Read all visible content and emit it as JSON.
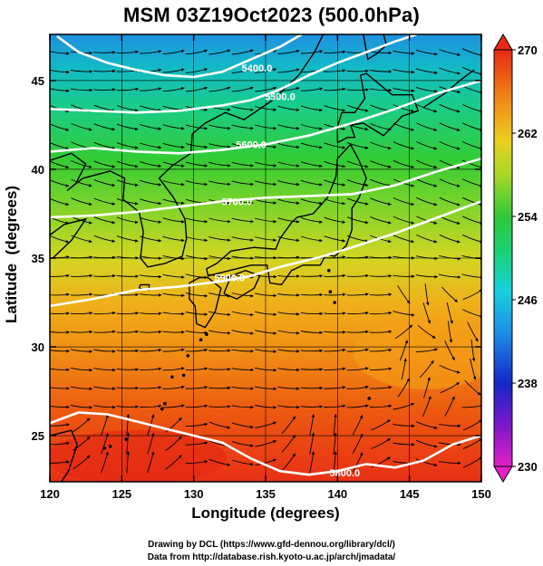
{
  "title": "MSM 03Z19Oct2023 (500.0hPa)",
  "axes": {
    "xlabel": "Longitude (degrees)",
    "ylabel": "Latitude  (degrees)",
    "xlim": [
      120,
      150
    ],
    "ylim": [
      22.4,
      47.6
    ],
    "xticks": [
      120,
      125,
      130,
      135,
      140,
      145,
      150
    ],
    "yticks": [
      25,
      30,
      35,
      40,
      45
    ]
  },
  "colorbar": {
    "min": 230,
    "max": 270,
    "ticks": [
      230,
      238,
      246,
      254,
      262,
      270
    ],
    "colormap": "rainbow (magenta-blue-cyan-green-yellow-orange-red)"
  },
  "contours": [
    {
      "label": "5400.0"
    },
    {
      "label": "5500.0"
    },
    {
      "label": "5600.0"
    },
    {
      "label": "5700.0"
    },
    {
      "label": "5800.0"
    },
    {
      "label": "5900.0"
    }
  ],
  "credits": {
    "line1": "Drawing by DCL (https://www.gfd-dennou.org/library/dcl/)",
    "line2": "Data from http://database.rish.kyoto-u.ac.jp/arch/jmadata/"
  }
}
